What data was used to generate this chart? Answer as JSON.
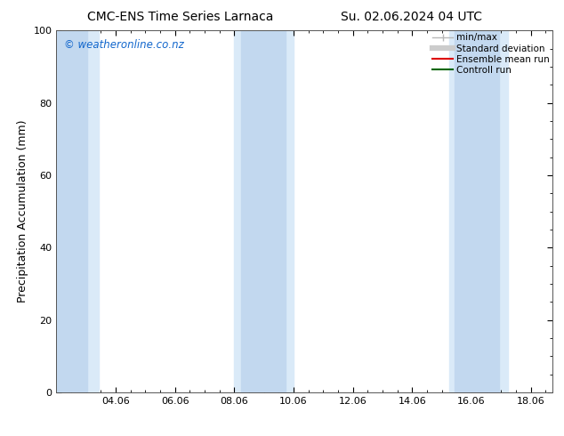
{
  "title_left": "CMC-ENS Time Series Larnaca",
  "title_right": "Su. 02.06.2024 04 UTC",
  "ylabel": "Precipitation Accumulation (mm)",
  "watermark": "© weatheronline.co.nz",
  "ylim": [
    0,
    100
  ],
  "xlim": [
    2.06,
    18.8
  ],
  "xticks": [
    4.06,
    6.06,
    8.06,
    10.06,
    12.06,
    14.06,
    16.06,
    18.06
  ],
  "xtick_labels": [
    "04.06",
    "06.06",
    "08.06",
    "10.06",
    "12.06",
    "14.06",
    "16.06",
    "18.06"
  ],
  "yticks": [
    0,
    20,
    40,
    60,
    80,
    100
  ],
  "outer_bands": [
    {
      "xmin": 2.06,
      "xmax": 3.5
    },
    {
      "xmin": 8.06,
      "xmax": 10.06
    },
    {
      "xmin": 15.3,
      "xmax": 17.3
    }
  ],
  "inner_bands": [
    {
      "xmin": 2.06,
      "xmax": 3.1
    },
    {
      "xmin": 8.3,
      "xmax": 9.8
    },
    {
      "xmin": 15.5,
      "xmax": 17.0
    }
  ],
  "band_color_outer": "#daeaf8",
  "band_color_inner": "#c2d8ef",
  "legend_entries": [
    {
      "label": "min/max",
      "color": "#b8b8b8",
      "lw": 1.0
    },
    {
      "label": "Standard deviation",
      "color": "#cccccc",
      "lw": 4.5
    },
    {
      "label": "Ensemble mean run",
      "color": "#dd0000",
      "lw": 1.5
    },
    {
      "label": "Controll run",
      "color": "#006600",
      "lw": 1.5
    }
  ],
  "bg_color": "#ffffff",
  "plot_bg_color": "#ffffff",
  "title_fontsize": 10,
  "tick_fontsize": 8,
  "ylabel_fontsize": 9,
  "legend_fontsize": 7.5,
  "watermark_color": "#1166cc",
  "watermark_fontsize": 8.5
}
